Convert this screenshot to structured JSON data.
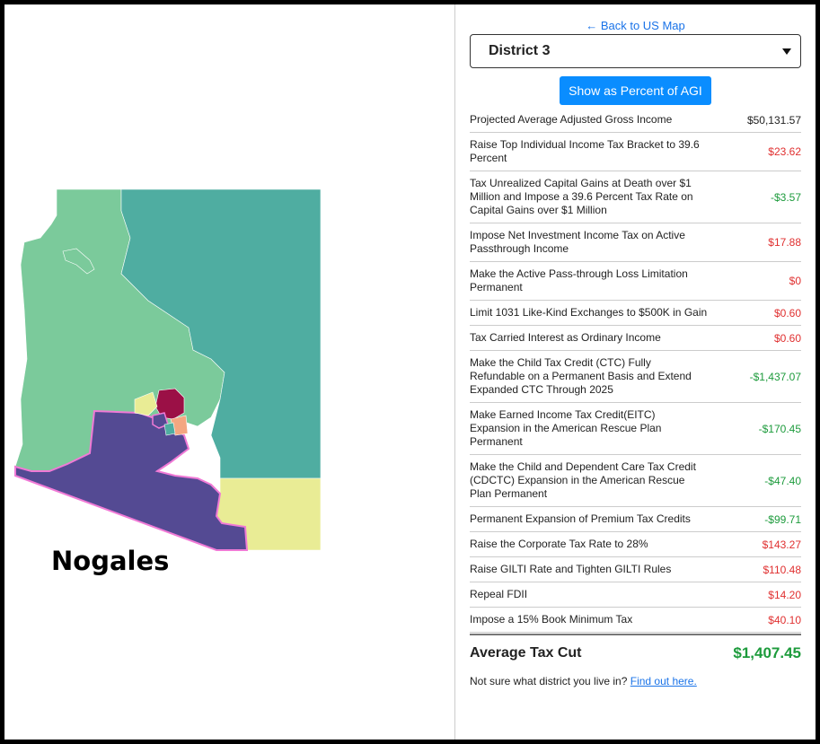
{
  "map": {
    "city_label": "Nogales",
    "colors": {
      "teal": "#4fada1",
      "green": "#7bca9b",
      "yellow": "#e9ec95",
      "purple": "#544a93",
      "maroon": "#9b1046",
      "orange": "#f4a781",
      "highlight": "#f07ad6"
    }
  },
  "nav": {
    "back_label": "← Back to US Map"
  },
  "district_select": {
    "value": "District 3"
  },
  "toggle_button": {
    "label": "Show as Percent of AGI"
  },
  "rows": [
    {
      "label": "Projected Average Adjusted Gross Income",
      "value": "$50,131.57",
      "kind": "plain"
    },
    {
      "label": "Raise Top Individual Income Tax Bracket to 39.6 Percent",
      "value": "$23.62",
      "kind": "pos"
    },
    {
      "label": "Tax Unrealized Capital Gains at Death over $1 Million and Impose a 39.6 Percent Tax Rate on Capital Gains over $1 Million",
      "value": "-$3.57",
      "kind": "neg"
    },
    {
      "label": "Impose Net Investment Income Tax on Active Passthrough Income",
      "value": "$17.88",
      "kind": "pos"
    },
    {
      "label": "Make the Active Pass-through Loss Limitation Permanent",
      "value": "$0",
      "kind": "pos"
    },
    {
      "label": "Limit 1031 Like-Kind Exchanges to $500K in Gain",
      "value": "$0.60",
      "kind": "pos"
    },
    {
      "label": "Tax Carried Interest as Ordinary Income",
      "value": "$0.60",
      "kind": "pos"
    },
    {
      "label": "Make the Child Tax Credit (CTC) Fully Refundable on a Permanent Basis and Extend Expanded CTC Through 2025",
      "value": "-$1,437.07",
      "kind": "neg"
    },
    {
      "label": "Make Earned Income Tax Credit(EITC) Expansion in the American Rescue Plan Permanent",
      "value": "-$170.45",
      "kind": "neg"
    },
    {
      "label": "Make the Child and Dependent Care Tax Credit (CDCTC) Expansion in the American Rescue Plan Permanent",
      "value": "-$47.40",
      "kind": "neg"
    },
    {
      "label": "Permanent Expansion of Premium Tax Credits",
      "value": "-$99.71",
      "kind": "neg"
    },
    {
      "label": "Raise the Corporate Tax Rate to 28%",
      "value": "$143.27",
      "kind": "pos"
    },
    {
      "label": "Raise GILTI Rate and Tighten GILTI Rules",
      "value": "$110.48",
      "kind": "pos"
    },
    {
      "label": "Repeal FDII",
      "value": "$14.20",
      "kind": "pos"
    },
    {
      "label": "Impose a 15% Book Minimum Tax",
      "value": "$40.10",
      "kind": "pos"
    }
  ],
  "total": {
    "label": "Average Tax Cut",
    "value": "$1,407.45"
  },
  "footer": {
    "text": "Not sure what district you live in?",
    "link": "Find out here."
  }
}
